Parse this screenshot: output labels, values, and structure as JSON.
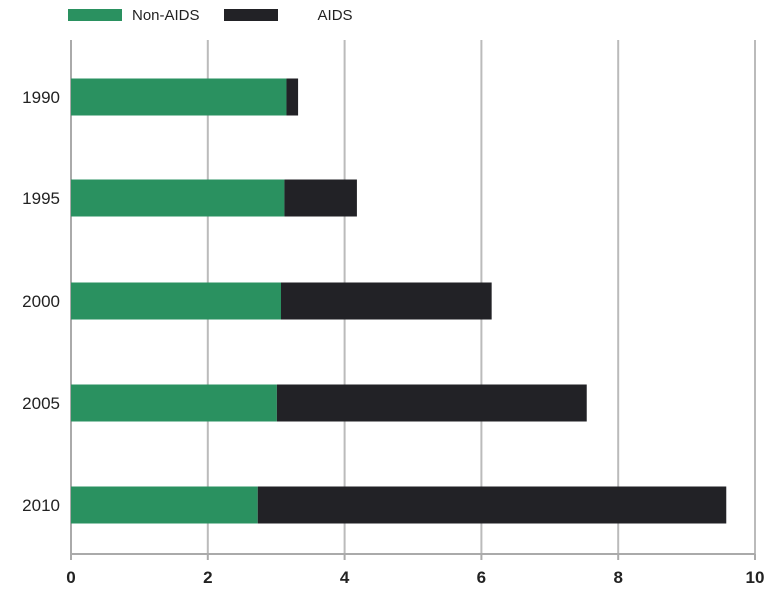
{
  "colors": {
    "non_aids": "#2a9160",
    "aids": "#222226",
    "grid": "#bbbbbb",
    "axis": "#aaaaaa",
    "text": "#222222"
  },
  "chart_data": {
    "type": "bar",
    "orientation": "horizontal",
    "stacked": true,
    "categories": [
      "1990",
      "1995",
      "2000",
      "2005",
      "2010"
    ],
    "series": [
      {
        "name": "Non-AIDS",
        "color": "#2a9160",
        "values": [
          3.15,
          3.12,
          3.07,
          3.01,
          2.73
        ]
      },
      {
        "name": "AIDS",
        "color": "#222226",
        "values": [
          0.17,
          1.06,
          3.08,
          4.53,
          6.85
        ]
      }
    ],
    "xlim": [
      0,
      10
    ],
    "xticks": [
      "0",
      "2",
      "4",
      "6",
      "8",
      "10"
    ],
    "grid": "vertical",
    "legend": "top-left",
    "title": "",
    "xlabel": "",
    "ylabel": ""
  }
}
